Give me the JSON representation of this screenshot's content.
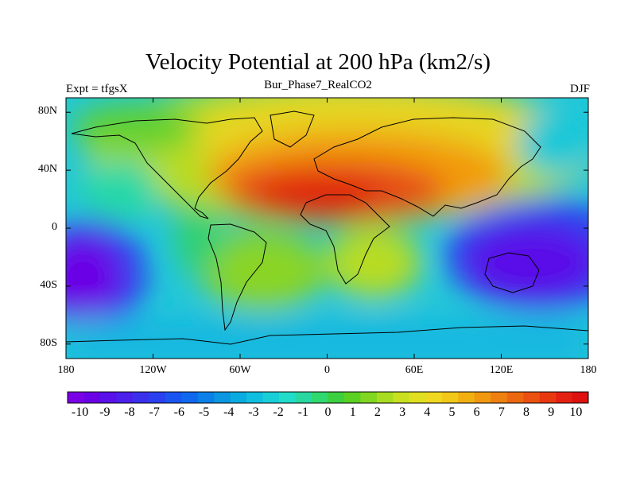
{
  "title": "Velocity Potential at 200 hPa (km2/s)",
  "left_label": "Expt = tfgsX",
  "center_label": "Bur_Phase7_RealCO2",
  "right_label": "DJF",
  "lat_ticks": [
    {
      "label": "80N",
      "lat": 80
    },
    {
      "label": "40N",
      "lat": 40
    },
    {
      "label": "0",
      "lat": 0
    },
    {
      "label": "40S",
      "lat": -40
    },
    {
      "label": "80S",
      "lat": -80
    }
  ],
  "lon_ticks": [
    {
      "label": "180",
      "lon": -180
    },
    {
      "label": "120W",
      "lon": -120
    },
    {
      "label": "60W",
      "lon": -60
    },
    {
      "label": "0",
      "lon": 0
    },
    {
      "label": "60E",
      "lon": 60
    },
    {
      "label": "120E",
      "lon": 120
    },
    {
      "label": "180",
      "lon": 180
    }
  ],
  "colorbar": {
    "min": -10.5,
    "max": 10.5,
    "labels": [
      "-10",
      "-9",
      "-8",
      "-7",
      "-6",
      "-5",
      "-4",
      "-3",
      "-2",
      "-1",
      "0",
      "1",
      "2",
      "3",
      "4",
      "5",
      "6",
      "7",
      "8",
      "9",
      "10"
    ],
    "colors": [
      "#7a00e6",
      "#6a00e6",
      "#5a10e8",
      "#4a20ea",
      "#3a30ec",
      "#2a40f0",
      "#1a55f2",
      "#1068ee",
      "#0a80e8",
      "#0a96e0",
      "#0aabe0",
      "#10bfe0",
      "#18cfd8",
      "#20dcc8",
      "#28d8a0",
      "#30d870",
      "#3cd040",
      "#5ad020",
      "#80d620",
      "#a8dc20",
      "#c8e020",
      "#e0e020",
      "#eed820",
      "#f2c818",
      "#f2b010",
      "#f09810",
      "#ee8010",
      "#ec6810",
      "#ea5010",
      "#e83810",
      "#e42010",
      "#de1010"
    ]
  },
  "map_data": {
    "extent": {
      "lon": [
        -180,
        180
      ],
      "lat": [
        -90,
        90
      ]
    },
    "field_centers": [
      {
        "lon": 10,
        "lat": 30,
        "value": 8.5
      },
      {
        "lon": 70,
        "lat": 40,
        "value": 6.5
      },
      {
        "lon": -50,
        "lat": 30,
        "value": 6
      },
      {
        "lon": -165,
        "lat": -25,
        "value": -10
      },
      {
        "lon": 140,
        "lat": -5,
        "value": -10
      },
      {
        "lon": -120,
        "lat": 60,
        "value": 1
      },
      {
        "lon": -40,
        "lat": -15,
        "value": 2
      },
      {
        "lon": 30,
        "lat": -40,
        "value": 3
      }
    ]
  }
}
